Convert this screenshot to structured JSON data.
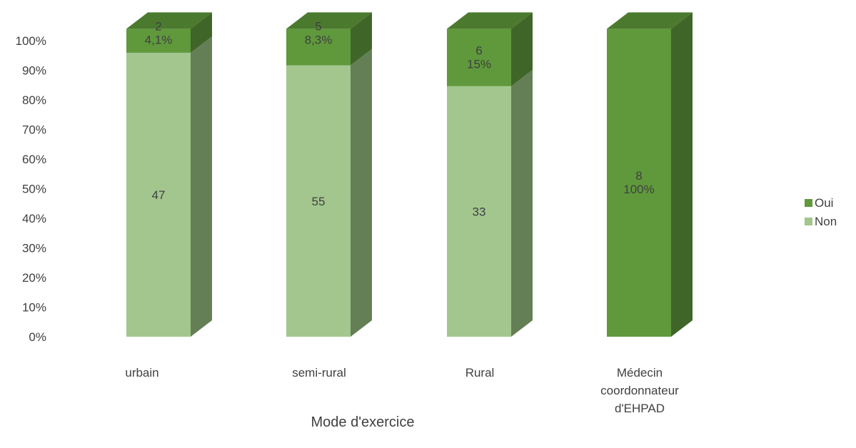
{
  "chart_data": {
    "type": "bar",
    "stacked": true,
    "normalized_percent": true,
    "style_3d": true,
    "categories": [
      "urbain",
      "semi-rural",
      "Rural",
      "Médecin coordonnateur d'EHPAD"
    ],
    "category_lines": [
      [
        "urbain"
      ],
      [
        "semi-rural"
      ],
      [
        "Rural"
      ],
      [
        "Médecin",
        "coordonnateur",
        "d'EHPAD"
      ]
    ],
    "series": [
      {
        "name": "Non",
        "values": [
          47,
          55,
          33,
          0
        ],
        "labels": [
          "47",
          "55",
          "33",
          null
        ],
        "color": "#a3c68e",
        "side_color": "#647f55"
      },
      {
        "name": "Oui",
        "values": [
          2,
          5,
          6,
          8
        ],
        "labels": [
          [
            "2",
            "4,1%"
          ],
          [
            "5",
            "8,3%"
          ],
          [
            "6",
            "15%"
          ],
          [
            "8",
            "100%"
          ]
        ],
        "color": "#5f993c",
        "side_color": "#3f6628",
        "top_color": "#4b7a2f"
      }
    ],
    "title": "",
    "xlabel": "Mode d'exercice",
    "ylabel": "",
    "ylim": [
      0,
      100
    ],
    "yticks": [
      "0%",
      "10%",
      "20%",
      "30%",
      "40%",
      "50%",
      "60%",
      "70%",
      "80%",
      "90%",
      "100%"
    ],
    "grid": false,
    "legend_position": "right",
    "legend_order": [
      "Oui",
      "Non"
    ]
  }
}
